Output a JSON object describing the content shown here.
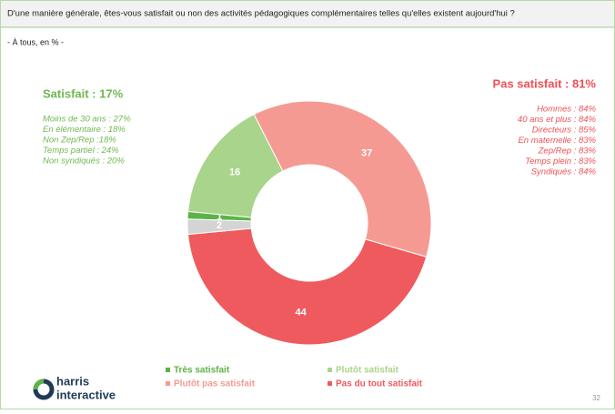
{
  "header": {
    "question": "D'une manière générale, êtes-vous satisfait ou non des activités pédagogiques complémentaires telles qu'elles existent aujourd'hui ?",
    "subtitle": "- À tous, en % -"
  },
  "chart_data": {
    "type": "donut",
    "categories": [
      "Très satisfait",
      "Plutôt satisfait",
      "Plutôt pas satisfait",
      "Pas du tout satisfait",
      null
    ],
    "values": [
      1,
      16,
      37,
      44,
      2
    ],
    "colors": [
      "#5cb347",
      "#a9d48c",
      "#f59a92",
      "#ef5a5f",
      "#d4d4d4"
    ],
    "annotations": {
      "left": {
        "title": "Satisfait : 17%",
        "lines": [
          "Moins de 30 ans : 27%",
          "En élémentaire : 18%",
          "Non Zep/Rep :18%",
          "Temps partiel : 24%",
          "Non syndiqués : 20%"
        ]
      },
      "right": {
        "title": "Pas satisfait : 81%",
        "lines": [
          "Hommes : 84%",
          "40 ans et plus : 84%",
          "Directeurs : 85%",
          "En maternelle : 83%",
          "Zep/Rep : 83%",
          "Temps plein : 83%",
          "Syndiqués : 84%"
        ]
      }
    }
  },
  "footer": {
    "logo": [
      "harris",
      "interactive"
    ],
    "page": "32"
  }
}
